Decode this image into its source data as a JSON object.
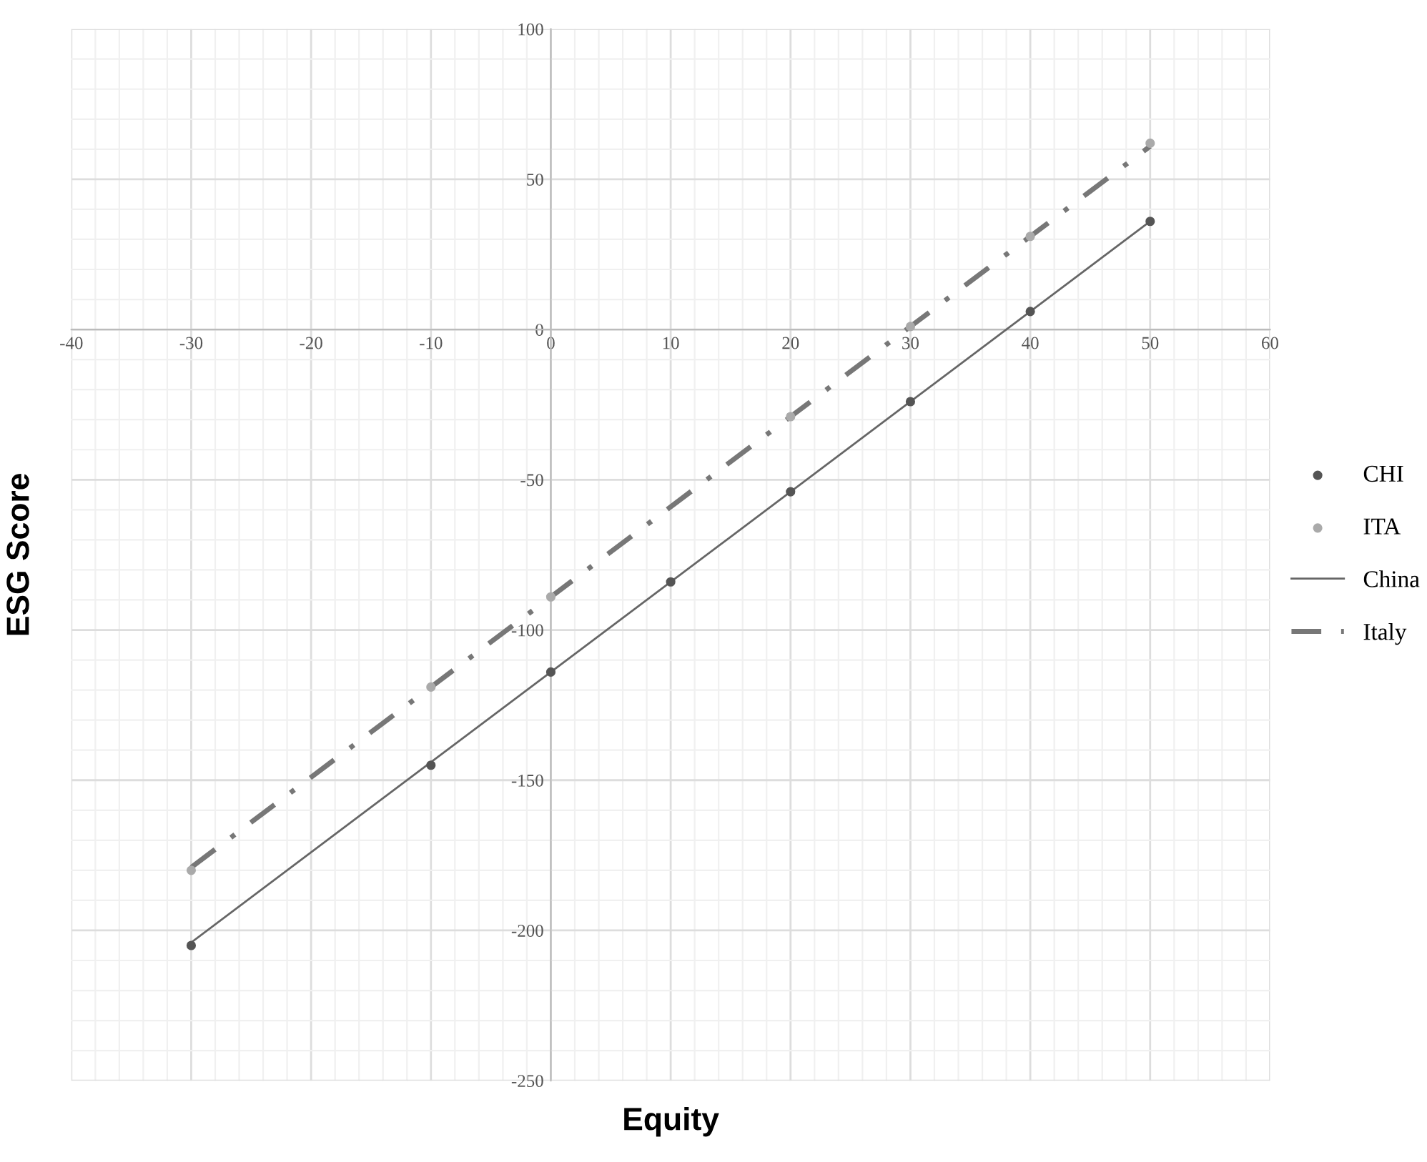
{
  "chart_data": {
    "type": "scatter",
    "xlabel": "Equity",
    "ylabel": "ESG Score",
    "xlim": [
      -40,
      60
    ],
    "xticks": [
      -40,
      -30,
      -20,
      -10,
      0,
      10,
      20,
      30,
      40,
      50,
      60
    ],
    "ylim": [
      -250,
      100
    ],
    "yticks": [
      -250,
      -200,
      -150,
      -100,
      -50,
      0,
      50,
      100
    ],
    "grid": true,
    "legend": "right",
    "series": [
      {
        "name": "CHI",
        "marker": "circle",
        "color": "#555555",
        "x": [
          -30,
          -10,
          0,
          10,
          20,
          30,
          40,
          50
        ],
        "values": [
          -205,
          -145,
          -114,
          -84,
          -54,
          -24,
          6,
          36
        ]
      },
      {
        "name": "ITA",
        "marker": "circle",
        "color": "#aaaaaa",
        "x": [
          -30,
          -10,
          0,
          20,
          30,
          40,
          50
        ],
        "values": [
          -180,
          -119,
          -89,
          -29,
          1,
          31,
          62
        ]
      },
      {
        "name": "China",
        "type": "line",
        "color": "#666666",
        "line_style": "solid",
        "x": [
          -30,
          50
        ],
        "values": [
          -204,
          36
        ]
      },
      {
        "name": "Italy",
        "type": "line",
        "color": "#777777",
        "line_style": "dashdot",
        "x": [
          -30,
          50
        ],
        "values": [
          -179,
          61
        ]
      }
    ]
  }
}
